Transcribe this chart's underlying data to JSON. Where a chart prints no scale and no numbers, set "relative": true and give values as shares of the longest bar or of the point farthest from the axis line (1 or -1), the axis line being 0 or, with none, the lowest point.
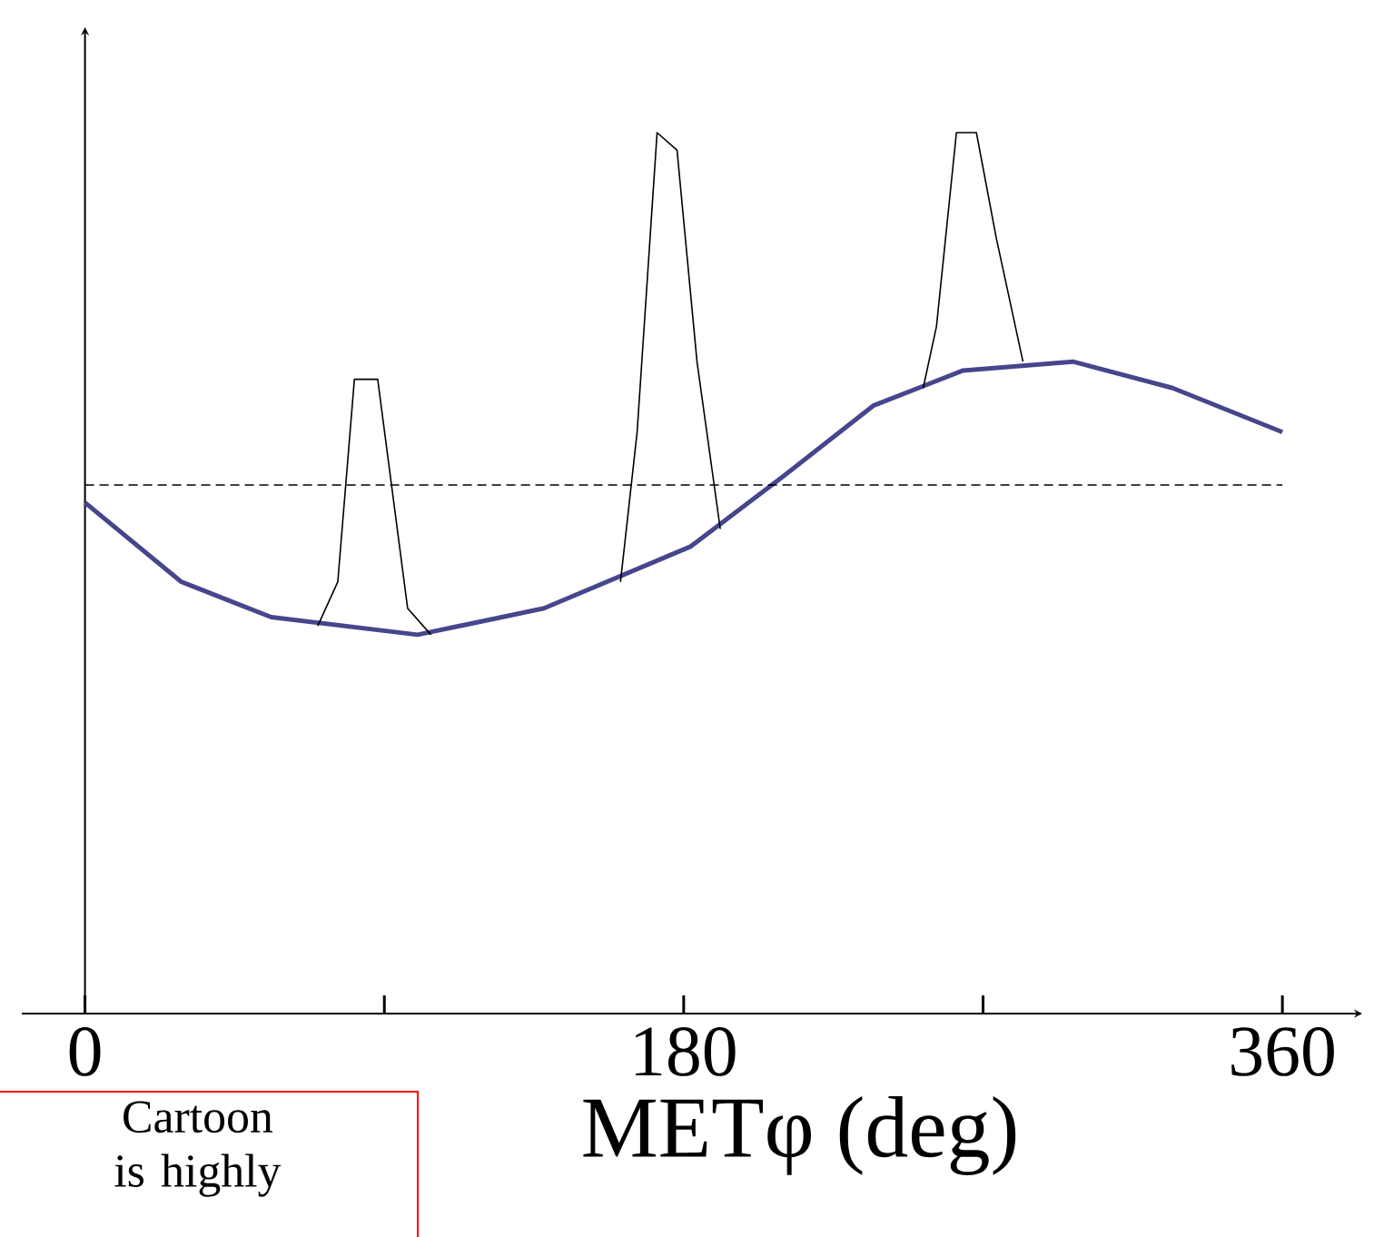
{
  "chart_data": {
    "type": "line",
    "relative": true,
    "xlabel": "METφ (deg)",
    "xlim": [
      -19,
      384
    ],
    "xticks": [
      0,
      {
        "value": 90,
        "label": null
      },
      180,
      {
        "value": 270,
        "label": null
      },
      360
    ],
    "marker": "none",
    "line_style": "solid",
    "tick_labels": "x",
    "series": [
      {
        "color": "#46468c",
        "x": [
          0,
          29,
          56,
          100,
          138,
          182,
          210,
          237,
          264,
          297,
          327,
          360
        ],
        "values": [
          0.58,
          0.49,
          0.45,
          0.43,
          0.46,
          0.53,
          0.61,
          0.69,
          0.73,
          0.74,
          0.71,
          0.66
        ]
      },
      {
        "color": "#000000",
        "x": [
          70,
          76,
          81,
          88,
          97,
          104,
          130,
          161,
          166,
          172,
          178,
          184,
          191,
          220,
          252,
          256,
          262,
          268,
          274,
          282
        ],
        "values": [
          0.44,
          0.49,
          0.72,
          0.72,
          0.46,
          0.43,
          null,
          0.49,
          0.66,
          1.0,
          0.98,
          0.74,
          0.55,
          null,
          0.71,
          0.78,
          1.0,
          1.0,
          0.88,
          0.74
        ]
      }
    ],
    "ref_lines": [
      {
        "axis": "y",
        "value": 0.6,
        "line_style": "dashed",
        "color": "#000000"
      }
    ],
    "annotations": [
      "Cartoon is highly"
    ]
  }
}
